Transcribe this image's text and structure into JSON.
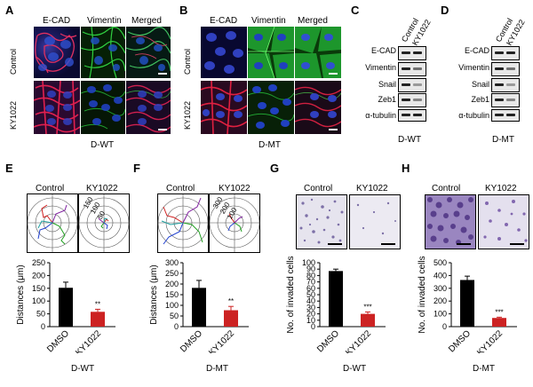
{
  "panels": {
    "A": {
      "letter": "A",
      "cols": [
        "E-CAD",
        "Vimentin",
        "Merged"
      ],
      "rows": [
        "Control",
        "KY1022"
      ],
      "caption": "D-WT"
    },
    "B": {
      "letter": "B",
      "cols": [
        "E-CAD",
        "Vimentin",
        "Merged"
      ],
      "rows": [
        "Control",
        "KY1022"
      ],
      "caption": "D-MT"
    },
    "C": {
      "letter": "C",
      "lanes": [
        "Control",
        "KY1022"
      ],
      "proteins": [
        "E-CAD",
        "Vimentin",
        "Snail",
        "Zeb1",
        "α-tubulin"
      ],
      "caption": "D-WT"
    },
    "D": {
      "letter": "D",
      "lanes": [
        "Control",
        "KY1022"
      ],
      "proteins": [
        "E-CAD",
        "Vimentin",
        "Snail",
        "Zeb1",
        "α-tubulin"
      ],
      "caption": "D-MT"
    },
    "E": {
      "letter": "E",
      "titles": [
        "Control",
        "KY1022"
      ],
      "rings": [
        "50",
        "100",
        "150"
      ],
      "caption": "D-WT"
    },
    "F": {
      "letter": "F",
      "titles": [
        "Control",
        "KY1022"
      ],
      "rings": [
        "100",
        "200",
        "300"
      ],
      "caption": "D-MT"
    },
    "G": {
      "letter": "G",
      "titles": [
        "Control",
        "KY1022"
      ],
      "caption": "D-WT"
    },
    "H": {
      "letter": "H",
      "titles": [
        "Control",
        "KY1022"
      ],
      "caption": "D-MT"
    }
  },
  "chart_data": [
    {
      "id": "E",
      "type": "bar",
      "categories": [
        "DMSO",
        "KY1022"
      ],
      "values": [
        152,
        58
      ],
      "errors": [
        22,
        10
      ],
      "ylabel": "Distances (μm)",
      "ylim": [
        0,
        250
      ],
      "yticks": [
        0,
        50,
        100,
        150,
        200,
        250
      ],
      "sig": [
        "",
        "**"
      ],
      "colors": [
        "#000000",
        "#cc2222"
      ]
    },
    {
      "id": "F",
      "type": "bar",
      "categories": [
        "DMSO",
        "KY1022"
      ],
      "values": [
        182,
        77
      ],
      "errors": [
        35,
        18
      ],
      "ylabel": "Distances (μm)",
      "ylim": [
        0,
        300
      ],
      "yticks": [
        0,
        50,
        100,
        150,
        200,
        250,
        300
      ],
      "sig": [
        "",
        "**"
      ],
      "colors": [
        "#000000",
        "#cc2222"
      ]
    },
    {
      "id": "G",
      "type": "bar",
      "categories": [
        "DMSO",
        "KY1022"
      ],
      "values": [
        87,
        20
      ],
      "errors": [
        3,
        3
      ],
      "ylabel": "No. of invaded cells",
      "ylim": [
        0,
        100
      ],
      "yticks": [
        0,
        10,
        20,
        30,
        40,
        50,
        60,
        70,
        80,
        90,
        100
      ],
      "sig": [
        "",
        "***"
      ],
      "colors": [
        "#000000",
        "#cc2222"
      ]
    },
    {
      "id": "H",
      "type": "bar",
      "categories": [
        "DMSO",
        "KY1022"
      ],
      "values": [
        365,
        68
      ],
      "errors": [
        30,
        6
      ],
      "ylabel": "No. of invaded cells",
      "ylim": [
        0,
        500
      ],
      "yticks": [
        0,
        100,
        200,
        300,
        400,
        500
      ],
      "sig": [
        "",
        "***"
      ],
      "colors": [
        "#000000",
        "#cc2222"
      ]
    }
  ]
}
